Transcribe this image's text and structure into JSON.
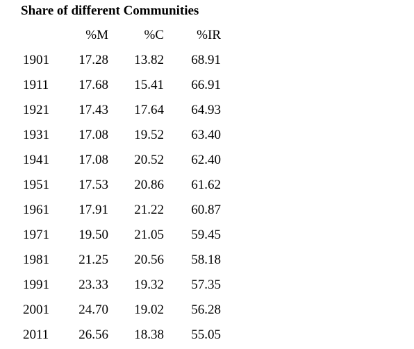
{
  "title": "Share of different Communities",
  "columns": [
    "",
    "%M",
    "%C",
    "%IR"
  ],
  "rows": [
    {
      "year": "1901",
      "m": "17.28",
      "c": "13.82",
      "ir": "68.91"
    },
    {
      "year": "1911",
      "m": "17.68",
      "c": "15.41",
      "ir": "66.91"
    },
    {
      "year": "1921",
      "m": "17.43",
      "c": "17.64",
      "ir": "64.93"
    },
    {
      "year": "1931",
      "m": "17.08",
      "c": "19.52",
      "ir": "63.40"
    },
    {
      "year": "1941",
      "m": "17.08",
      "c": "20.52",
      "ir": "62.40"
    },
    {
      "year": "1951",
      "m": "17.53",
      "c": "20.86",
      "ir": "61.62"
    },
    {
      "year": "1961",
      "m": "17.91",
      "c": "21.22",
      "ir": "60.87"
    },
    {
      "year": "1971",
      "m": "19.50",
      "c": "21.05",
      "ir": "59.45"
    },
    {
      "year": "1981",
      "m": "21.25",
      "c": "20.56",
      "ir": "58.18"
    },
    {
      "year": "1991",
      "m": "23.33",
      "c": "19.32",
      "ir": "57.35"
    },
    {
      "year": "2001",
      "m": "24.70",
      "c": "19.02",
      "ir": "56.28"
    },
    {
      "year": "2011",
      "m": "26.56",
      "c": "18.38",
      "ir": "55.05"
    }
  ]
}
